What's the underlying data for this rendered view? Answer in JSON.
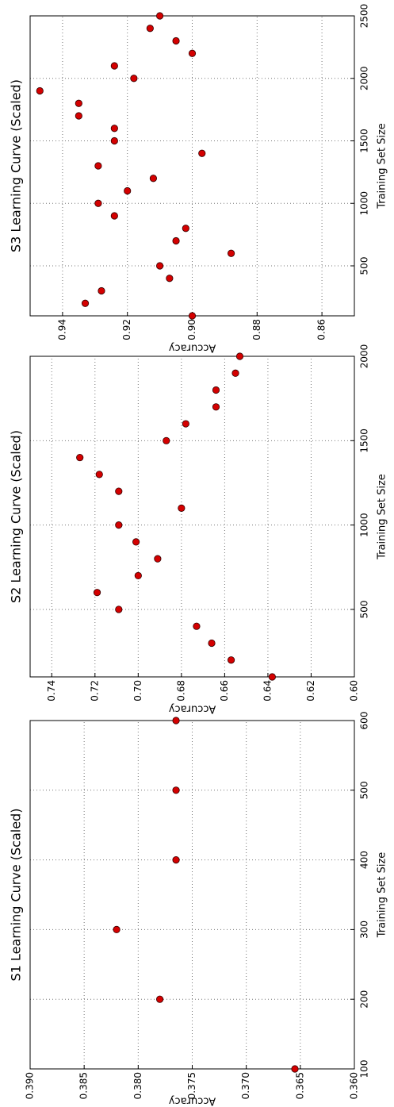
{
  "chart_data": [
    {
      "type": "scatter",
      "title": "S1 Learning Curve (Scaled)",
      "x_label": "Training Set Size",
      "y_label": "Accuracy",
      "x": [
        100,
        200,
        300,
        400,
        500,
        600
      ],
      "values": [
        0.3655,
        0.378,
        0.382,
        0.3765,
        0.3765,
        0.3765
      ],
      "color": "#d40000",
      "grid": true,
      "xlim": [
        100,
        600
      ],
      "xticks": [
        100,
        200,
        300,
        400,
        500,
        600
      ],
      "ylim": [
        0.36,
        0.39
      ],
      "yticks": [
        {
          "value": 0.36,
          "label": "0.360"
        },
        0.365,
        {
          "value": 0.37,
          "label": "0.370"
        },
        0.375,
        {
          "value": 0.38,
          "label": "0.380"
        },
        0.385,
        {
          "value": 0.39,
          "label": "0.390"
        }
      ]
    },
    {
      "type": "scatter",
      "title": "S2 Learning Curve (Scaled)",
      "x_label": "Training Set Size",
      "y_label": "Accuracy",
      "x": [
        100,
        200,
        300,
        400,
        500,
        600,
        700,
        800,
        900,
        1000,
        1100,
        1200,
        1300,
        1400,
        1500,
        1600,
        1700,
        1800,
        1900,
        2000
      ],
      "values": [
        0.638,
        0.657,
        0.666,
        0.673,
        0.709,
        0.719,
        0.7,
        0.691,
        0.701,
        0.709,
        0.68,
        0.709,
        0.718,
        0.727,
        0.687,
        0.678,
        0.664,
        0.664,
        0.655,
        0.653
      ],
      "color": "#d40000",
      "grid": true,
      "xlim": [
        100,
        2000
      ],
      "xticks": [
        500,
        1000,
        1500,
        2000
      ],
      "ylim": [
        0.6,
        0.75
      ],
      "yticks": [
        {
          "value": 0.6,
          "label": "0.60"
        },
        0.62,
        0.64,
        0.66,
        0.68,
        {
          "value": 0.7,
          "label": "0.70"
        },
        0.72,
        0.74
      ]
    },
    {
      "type": "scatter",
      "title": "S3 Learning Curve (Scaled)",
      "x_label": "Training Set Size",
      "y_label": "Accuracy",
      "x": [
        100,
        200,
        300,
        400,
        500,
        600,
        700,
        800,
        900,
        1000,
        1100,
        1200,
        1300,
        1400,
        1500,
        1600,
        1700,
        1800,
        1900,
        2000,
        2100,
        2200,
        2300,
        2400,
        2500
      ],
      "values": [
        0.9,
        0.933,
        0.928,
        0.907,
        0.91,
        0.888,
        0.905,
        0.902,
        0.924,
        0.929,
        0.92,
        0.912,
        0.929,
        0.897,
        0.924,
        0.924,
        0.935,
        0.935,
        0.947,
        0.918,
        0.924,
        0.9,
        0.905,
        0.913,
        0.91
      ],
      "color": "#d40000",
      "grid": true,
      "xlim": [
        100,
        2500
      ],
      "xticks": [
        500,
        1000,
        1500,
        2000,
        2500
      ],
      "ylim": [
        0.85,
        0.95
      ],
      "yticks": [
        0.86,
        0.88,
        {
          "value": 0.9,
          "label": "0.90"
        },
        0.92,
        0.94
      ]
    }
  ]
}
